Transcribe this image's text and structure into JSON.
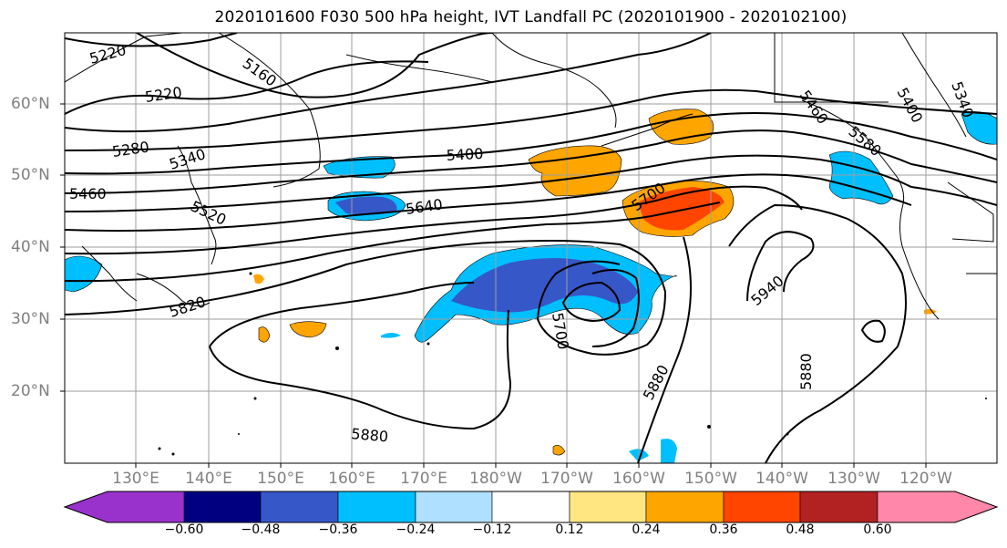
{
  "title": "2020101600 F030 500 hPa height, IVT Landfall PC (2020101900 - 2020102100)",
  "latitude_labels": [
    "60°N",
    "50°N",
    "40°N",
    "30°N",
    "20°N"
  ],
  "longitude_labels": [
    "130°E",
    "140°E",
    "150°E",
    "160°E",
    "170°E",
    "180°W",
    "170°W",
    "160°W",
    "150°W",
    "140°W",
    "130°W",
    "120°W"
  ],
  "contour_labels": [
    "5220",
    "5160",
    "5220",
    "5280",
    "5340",
    "5400",
    "5460",
    "5520",
    "5640",
    "5700",
    "5820",
    "5700",
    "5940",
    "5880",
    "5880",
    "5880",
    "5460",
    "5400",
    "5340",
    "5580"
  ],
  "colorbar": {
    "tick_labels": [
      "−0.60",
      "−0.48",
      "−0.36",
      "−0.24",
      "−0.12",
      "0.12",
      "0.24",
      "0.36",
      "0.48",
      "0.60"
    ],
    "colors": [
      "#9932cc",
      "#000080",
      "#3657c8",
      "#00bfff",
      "#b0e0ff",
      "#ffffff",
      "#ffe680",
      "#ffa500",
      "#ff4500",
      "#b22222",
      "#ff88aa"
    ]
  },
  "colors": {
    "grid": "#9e9e9e",
    "tick_label": "#808080",
    "coast": "#000000"
  }
}
